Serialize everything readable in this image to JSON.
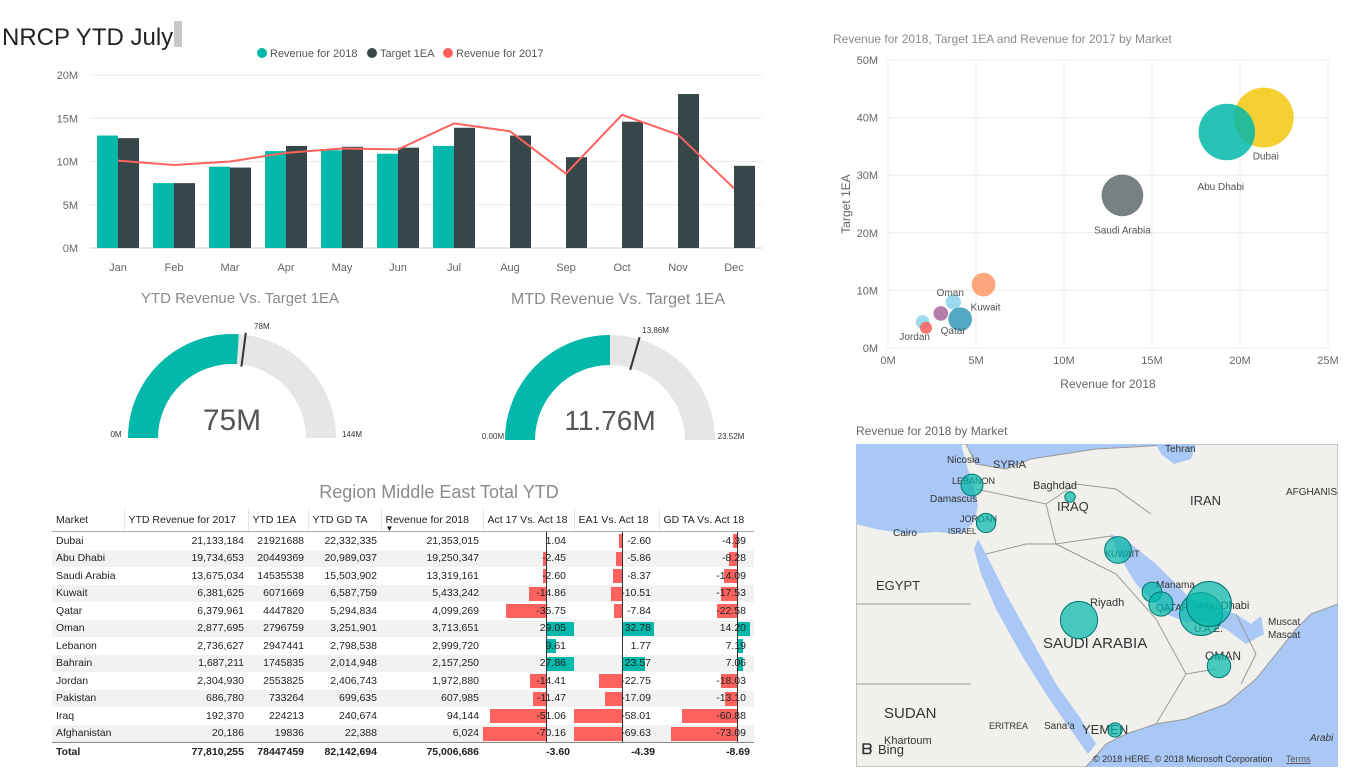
{
  "report_title": "NRCP YTD July",
  "combo_chart": {
    "legend": [
      {
        "label": "Revenue for 2018",
        "color": "#01b8aa"
      },
      {
        "label": "Target 1EA",
        "color": "#374649"
      },
      {
        "label": "Revenue for 2017",
        "color": "#fd625e"
      }
    ],
    "y_ticks": [
      "0M",
      "5M",
      "10M",
      "15M",
      "20M"
    ]
  },
  "gauge_ytd": {
    "title": "YTD Revenue Vs. Target 1EA",
    "value_label": "75M",
    "min_label": "0M",
    "max_label": "144M",
    "target_label": "78M",
    "value": 75,
    "min": 0,
    "max": 144,
    "target": 78
  },
  "gauge_mtd": {
    "title": "MTD Revenue Vs. Target 1EA",
    "value_label": "11.76M",
    "min_label": "0.00M",
    "max_label": "23.52M",
    "target_label": "13.86M",
    "value": 11.76,
    "min": 0,
    "max": 23.52,
    "target": 13.86
  },
  "table": {
    "title": "Region Middle East Total YTD",
    "columns": [
      "Market",
      "YTD Revenue for 2017",
      "YTD 1EA",
      "YTD GD TA",
      "Revenue for 2018",
      "Act 17 Vs. Act 18",
      "EA1 Vs. Act 18",
      "GD TA Vs. Act 18"
    ],
    "rows": [
      [
        "Dubai",
        "21,133,184",
        "21921688",
        "22,332,335",
        "21,353,015",
        "1.04",
        "-2.60",
        "-4.39"
      ],
      [
        "Abu Dhabi",
        "19,734,653",
        "20449369",
        "20,989,037",
        "19,250,347",
        "-2.45",
        "-5.86",
        "-8.28"
      ],
      [
        "Saudi Arabia",
        "13,675,034",
        "14535538",
        "15,503,902",
        "13,319,161",
        "-2.60",
        "-8.37",
        "-14.09"
      ],
      [
        "Kuwait",
        "6,381,625",
        "6071669",
        "6,587,759",
        "5,433,242",
        "-14.86",
        "-10.51",
        "-17.53"
      ],
      [
        "Qatar",
        "6,379,961",
        "4447820",
        "5,294,834",
        "4,099,269",
        "-35.75",
        "-7.84",
        "-22.58"
      ],
      [
        "Oman",
        "2,877,695",
        "2796759",
        "3,251,901",
        "3,713,651",
        "29.05",
        "32.78",
        "14.20"
      ],
      [
        "Lebanon",
        "2,736,627",
        "2947441",
        "2,798,538",
        "2,999,720",
        "9.61",
        "1.77",
        "7.19"
      ],
      [
        "Bahrain",
        "1,687,211",
        "1745835",
        "2,014,948",
        "2,157,250",
        "27.86",
        "23.57",
        "7.06"
      ],
      [
        "Jordan",
        "2,304,930",
        "2553825",
        "2,406,743",
        "1,972,880",
        "-14.41",
        "-22.75",
        "-18.03"
      ],
      [
        "Pakistan",
        "686,780",
        "733264",
        "699,635",
        "607,985",
        "-11.47",
        "-17.09",
        "-13.10"
      ],
      [
        "Iraq",
        "192,370",
        "224213",
        "240,674",
        "94,144",
        "-51.06",
        "-58.01",
        "-60.88"
      ],
      [
        "Afghanistan",
        "20,186",
        "19836",
        "22,388",
        "6,024",
        "-70.16",
        "-69.63",
        "-73.09"
      ]
    ],
    "total": [
      "Total",
      "77,810,255",
      "78447459",
      "82,142,694",
      "75,006,686",
      "-3.60",
      "-4.39",
      "-8.69"
    ]
  },
  "bubble_chart": {
    "title": "Revenue for 2018, Target 1EA and Revenue for 2017 by Market",
    "x_label": "Revenue for 2018",
    "y_label": "Target 1EA",
    "x_ticks": [
      "0M",
      "5M",
      "10M",
      "15M",
      "20M",
      "25M"
    ],
    "y_ticks": [
      "0M",
      "10M",
      "20M",
      "30M",
      "40M",
      "50M"
    ]
  },
  "map": {
    "title": "Revenue for 2018 by Market",
    "labels": {
      "tehran": "Tehran",
      "nicosia": "Nicosia",
      "syria": "SYRIA",
      "lebanon": "LEBANON",
      "baghdad": "Baghdad",
      "afghanistan": "AFGHANIS",
      "damascus": "Damascus",
      "iraq": "IRAQ",
      "iran": "IRAN",
      "jordan": "JORDAN",
      "israel": "ISRAEL",
      "cairo": "Cairo",
      "kuwait": "KUWAIT",
      "egypt": "EGYPT",
      "manama": "Manama",
      "riyadh": "Riyadh",
      "qatar": "QATAR",
      "abu_dhabi": "Abu Dhabi",
      "uae": "U.A.E.",
      "muscat1": "Muscat",
      "muscat2": "Mascat",
      "saudi": "SAUDI ARABIA",
      "oman": "OMAN",
      "sudan": "SUDAN",
      "khartoum": "Khartoum",
      "eritrea": "ERITREA",
      "sanaa": "Sana'a",
      "yemen": "YEMEN",
      "arabian": "Arabi"
    },
    "bing": "Bing",
    "copyright": "© 2018 HERE, © 2018 Microsoft Corporation",
    "terms": "Terms"
  },
  "chart_data": [
    {
      "type": "bar",
      "categories": [
        "Jan",
        "Feb",
        "Mar",
        "Apr",
        "May",
        "Jun",
        "Jul",
        "Aug",
        "Sep",
        "Oct",
        "Nov",
        "Dec"
      ],
      "series": [
        {
          "name": "Revenue for 2018",
          "type": "bar",
          "color": "#01b8aa",
          "values": [
            13.0,
            7.5,
            9.4,
            11.2,
            11.3,
            10.9,
            11.8,
            null,
            null,
            null,
            null,
            null
          ]
        },
        {
          "name": "Target 1EA",
          "type": "bar",
          "color": "#374649",
          "values": [
            12.7,
            7.5,
            9.3,
            11.8,
            11.7,
            11.6,
            13.9,
            13.0,
            10.5,
            14.6,
            17.8,
            9.5
          ]
        },
        {
          "name": "Revenue for 2017",
          "type": "line",
          "color": "#fd625e",
          "values": [
            10.1,
            9.6,
            10.0,
            11.0,
            11.5,
            11.4,
            14.4,
            13.5,
            8.6,
            15.4,
            13.1,
            6.9
          ]
        }
      ],
      "ylim": [
        0,
        20
      ],
      "y_unit": "M",
      "grid": true,
      "legend_position": "top"
    },
    {
      "type": "scatter",
      "title": "Revenue for 2018, Target 1EA and Revenue for 2017 by Market",
      "xlabel": "Revenue for 2018",
      "ylabel": "Target 1EA",
      "xlim": [
        0,
        25
      ],
      "ylim": [
        0,
        50
      ],
      "points": [
        {
          "label": "Dubai",
          "x": 21.35,
          "y": 40.0,
          "size": 21.1,
          "color": "#f2c80f"
        },
        {
          "label": "Abu Dhabi",
          "x": 19.25,
          "y": 37.5,
          "size": 19.7,
          "color": "#01b8aa"
        },
        {
          "label": "Saudi Arabia",
          "x": 13.32,
          "y": 26.5,
          "size": 13.7,
          "color": "#5f6b6d"
        },
        {
          "label": "Kuwait",
          "x": 5.43,
          "y": 11.0,
          "size": 6.4,
          "color": "#fe9666"
        },
        {
          "label": "Oman",
          "x": 3.71,
          "y": 8.0,
          "size": 2.9,
          "color": "#8ad4eb"
        },
        {
          "label": "Qatar",
          "x": 4.1,
          "y": 5.0,
          "size": 6.4,
          "color": "#3599b8"
        },
        {
          "label": "Lebanon",
          "x": 3.0,
          "y": 6.0,
          "size": 2.7,
          "color": "#a66999"
        },
        {
          "label": "Jordan",
          "x": 1.97,
          "y": 4.5,
          "size": 2.3,
          "color": "#8ad4eb"
        },
        {
          "label": "Bahrain",
          "x": 2.16,
          "y": 3.5,
          "size": 1.7,
          "color": "#fd625e"
        }
      ],
      "grid": true
    }
  ],
  "map_points": [
    {
      "name": "Lebanon",
      "value": 3.0
    },
    {
      "name": "Jordan",
      "value": 1.97
    },
    {
      "name": "Iraq",
      "value": 0.09
    },
    {
      "name": "Kuwait",
      "value": 5.43
    },
    {
      "name": "Bahrain",
      "value": 2.16
    },
    {
      "name": "Qatar",
      "value": 4.1
    },
    {
      "name": "Saudi Arabia",
      "value": 13.32
    },
    {
      "name": "Abu Dhabi",
      "value": 19.25
    },
    {
      "name": "Dubai",
      "value": 21.35
    },
    {
      "name": "Oman",
      "value": 3.71
    },
    {
      "name": "Yemen",
      "value": 0.6
    }
  ]
}
